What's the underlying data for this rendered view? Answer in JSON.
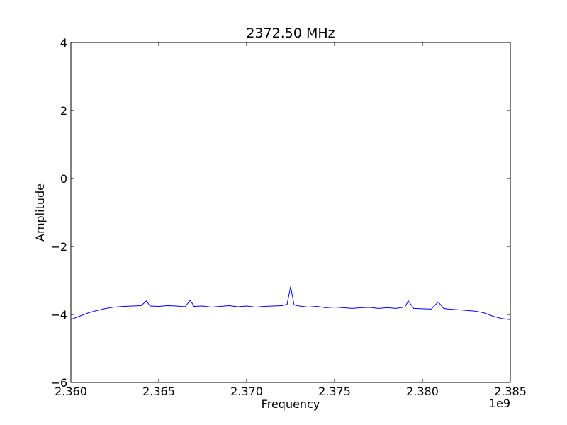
{
  "chart_data": {
    "type": "line",
    "title": "2372.50 MHz",
    "xlabel": "Frequency",
    "ylabel": "Amplitude",
    "x_offset_label": "1e9",
    "xlim": [
      2.36,
      2.385
    ],
    "ylim": [
      -6,
      4
    ],
    "xticks": [
      2.36,
      2.365,
      2.37,
      2.375,
      2.38,
      2.385
    ],
    "xtick_labels": [
      "2.360",
      "2.365",
      "2.370",
      "2.375",
      "2.380",
      "2.385"
    ],
    "yticks": [
      -6,
      -4,
      -2,
      0,
      2,
      4
    ],
    "ytick_labels": [
      "−6",
      "−4",
      "−2",
      "0",
      "2",
      "4"
    ],
    "grid": false,
    "series": [
      {
        "color": "#0000ff",
        "x": [
          2.36,
          2.3605,
          2.361,
          2.3615,
          2.362,
          2.3625,
          2.363,
          2.3635,
          2.364,
          2.3643,
          2.3645,
          2.365,
          2.3655,
          2.366,
          2.3665,
          2.3668,
          2.367,
          2.3675,
          2.368,
          2.3685,
          2.369,
          2.3695,
          2.37,
          2.3705,
          2.371,
          2.3715,
          2.372,
          2.3723,
          2.3725,
          2.3727,
          2.373,
          2.3735,
          2.374,
          2.3745,
          2.375,
          2.3755,
          2.376,
          2.3765,
          2.377,
          2.3775,
          2.378,
          2.3785,
          2.379,
          2.3792,
          2.3795,
          2.38,
          2.3805,
          2.3809,
          2.3812,
          2.3815,
          2.382,
          2.3825,
          2.383,
          2.3835,
          2.384,
          2.3845,
          2.385
        ],
        "y": [
          -4.15,
          -4.05,
          -3.95,
          -3.88,
          -3.82,
          -3.78,
          -3.76,
          -3.75,
          -3.74,
          -3.6,
          -3.75,
          -3.76,
          -3.74,
          -3.75,
          -3.77,
          -3.58,
          -3.76,
          -3.75,
          -3.78,
          -3.76,
          -3.74,
          -3.77,
          -3.75,
          -3.78,
          -3.76,
          -3.75,
          -3.74,
          -3.7,
          -3.18,
          -3.72,
          -3.75,
          -3.78,
          -3.76,
          -3.8,
          -3.78,
          -3.8,
          -3.82,
          -3.8,
          -3.79,
          -3.82,
          -3.8,
          -3.82,
          -3.78,
          -3.6,
          -3.82,
          -3.83,
          -3.84,
          -3.63,
          -3.82,
          -3.84,
          -3.86,
          -3.88,
          -3.9,
          -3.95,
          -4.05,
          -4.12,
          -4.15
        ]
      }
    ]
  }
}
